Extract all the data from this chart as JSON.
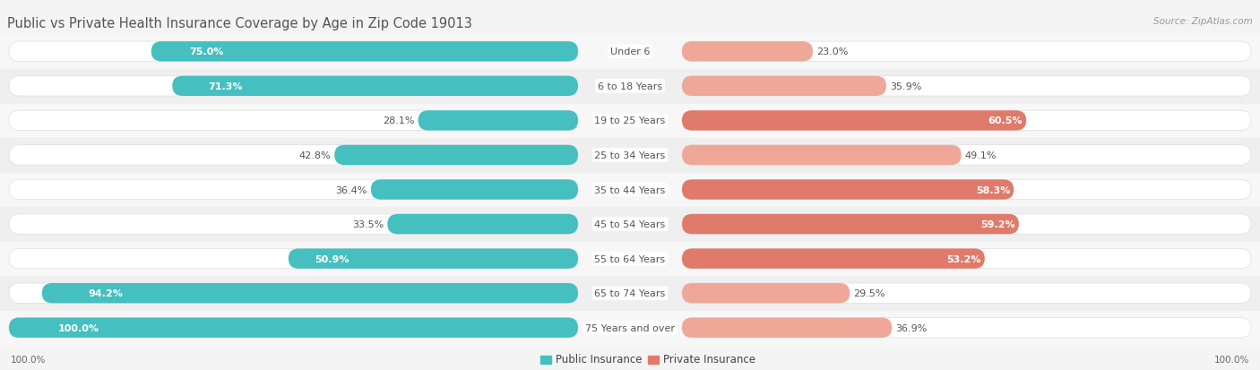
{
  "title": "Public vs Private Health Insurance Coverage by Age in Zip Code 19013",
  "source": "Source: ZipAtlas.com",
  "categories": [
    "Under 6",
    "6 to 18 Years",
    "19 to 25 Years",
    "25 to 34 Years",
    "35 to 44 Years",
    "45 to 54 Years",
    "55 to 64 Years",
    "65 to 74 Years",
    "75 Years and over"
  ],
  "public_values": [
    75.0,
    71.3,
    28.1,
    42.8,
    36.4,
    33.5,
    50.9,
    94.2,
    100.0
  ],
  "private_values": [
    23.0,
    35.9,
    60.5,
    49.1,
    58.3,
    59.2,
    53.2,
    29.5,
    36.9
  ],
  "public_color": "#45BFBF",
  "private_color": "#E07A6A",
  "private_light_color": "#EFA898",
  "bg_color": "#F4F4F4",
  "row_bg_even": "#F7F7F7",
  "row_bg_odd": "#EFEFEF",
  "title_color": "#555555",
  "source_color": "#999999",
  "label_color": "#555555",
  "value_color_inside": "#FFFFFF",
  "value_color_outside": "#555555",
  "title_fontsize": 10.5,
  "label_fontsize": 8.0,
  "value_fontsize": 8.0,
  "legend_fontsize": 8.5,
  "footer_fontsize": 7.5,
  "max_val": 100.0
}
